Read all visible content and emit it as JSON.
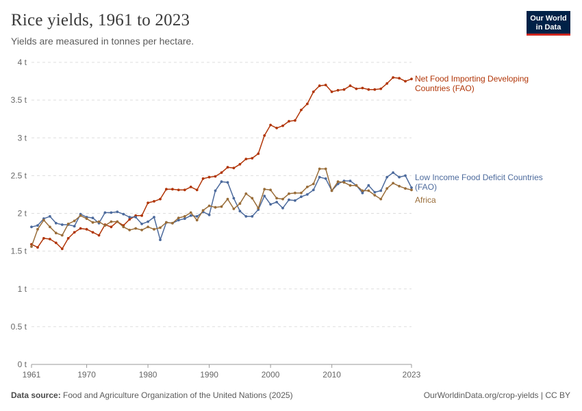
{
  "header": {
    "title": "Rice yields, 1961 to 2023",
    "subtitle": "Yields are measured in tonnes per hectare."
  },
  "logo": {
    "line1": "Our World",
    "line2": "in Data"
  },
  "footer": {
    "source_label": "Data source:",
    "source_text": "Food and Agriculture Organization of the United Nations (2025)",
    "url_text": "OurWorldinData.org/crop-yields | CC BY"
  },
  "chart_data": {
    "type": "line",
    "title": "Rice yields, 1961 to 2023",
    "xlabel": "",
    "ylabel": "",
    "xlim": [
      1961,
      2023
    ],
    "ylim": [
      0,
      4
    ],
    "y_ticks": [
      0,
      0.5,
      1,
      1.5,
      2,
      2.5,
      3,
      3.5,
      4
    ],
    "y_tick_labels": [
      "0 t",
      "0.5 t",
      "1 t",
      "1.5 t",
      "2 t",
      "2.5 t",
      "3 t",
      "3.5 t",
      "4 t"
    ],
    "x_ticks": [
      1961,
      1970,
      1980,
      1990,
      2000,
      2010,
      2023
    ],
    "x_tick_labels": [
      "1961",
      "1970",
      "1980",
      "1990",
      "2000",
      "2010",
      "2023"
    ],
    "grid": true,
    "x_start": 1961,
    "series": [
      {
        "name": "Net Food Importing Developing Countries (FAO)",
        "label_lines": [
          "Net Food Importing Developing",
          "Countries (FAO)"
        ],
        "color": "#b13507",
        "values": [
          1.59,
          1.55,
          1.67,
          1.66,
          1.61,
          1.53,
          1.67,
          1.75,
          1.8,
          1.79,
          1.75,
          1.71,
          1.85,
          1.82,
          1.89,
          1.84,
          1.92,
          1.97,
          1.97,
          2.14,
          2.16,
          2.19,
          2.32,
          2.32,
          2.31,
          2.31,
          2.35,
          2.31,
          2.46,
          2.48,
          2.49,
          2.54,
          2.61,
          2.6,
          2.65,
          2.72,
          2.73,
          2.79,
          3.03,
          3.17,
          3.13,
          3.16,
          3.22,
          3.23,
          3.37,
          3.45,
          3.61,
          3.69,
          3.7,
          3.61,
          3.63,
          3.64,
          3.69,
          3.65,
          3.66,
          3.64,
          3.64,
          3.65,
          3.72,
          3.8,
          3.79,
          3.75,
          3.78
        ]
      },
      {
        "name": "Low Income Food Deficit Countries (FAO)",
        "label_lines": [
          "Low Income Food Deficit Countries",
          "(FAO)"
        ],
        "color": "#4c6a9c",
        "values": [
          1.82,
          1.84,
          1.93,
          1.96,
          1.87,
          1.85,
          1.85,
          1.83,
          1.99,
          1.95,
          1.94,
          1.87,
          2.01,
          2.01,
          2.02,
          1.99,
          1.95,
          1.95,
          1.86,
          1.89,
          1.95,
          1.65,
          1.88,
          1.87,
          1.91,
          1.93,
          1.97,
          1.96,
          2.02,
          1.98,
          2.3,
          2.42,
          2.41,
          2.2,
          2.03,
          1.96,
          1.96,
          2.05,
          2.23,
          2.12,
          2.15,
          2.07,
          2.18,
          2.17,
          2.22,
          2.25,
          2.31,
          2.48,
          2.46,
          2.3,
          2.39,
          2.43,
          2.43,
          2.37,
          2.27,
          2.37,
          2.28,
          2.3,
          2.48,
          2.54,
          2.48,
          2.5,
          2.34
        ]
      },
      {
        "name": "Africa",
        "label_lines": [
          "Africa"
        ],
        "color": "#996d39",
        "values": [
          1.56,
          1.79,
          1.91,
          1.82,
          1.74,
          1.71,
          1.86,
          1.9,
          1.97,
          1.93,
          1.88,
          1.89,
          1.84,
          1.89,
          1.89,
          1.82,
          1.78,
          1.8,
          1.78,
          1.82,
          1.79,
          1.81,
          1.88,
          1.87,
          1.94,
          1.96,
          2.01,
          1.91,
          2.04,
          2.1,
          2.08,
          2.09,
          2.19,
          2.06,
          2.13,
          2.26,
          2.2,
          2.07,
          2.32,
          2.31,
          2.2,
          2.19,
          2.26,
          2.27,
          2.27,
          2.35,
          2.39,
          2.59,
          2.59,
          2.3,
          2.42,
          2.41,
          2.37,
          2.37,
          2.3,
          2.3,
          2.24,
          2.19,
          2.33,
          2.4,
          2.36,
          2.33,
          2.31
        ]
      }
    ]
  }
}
